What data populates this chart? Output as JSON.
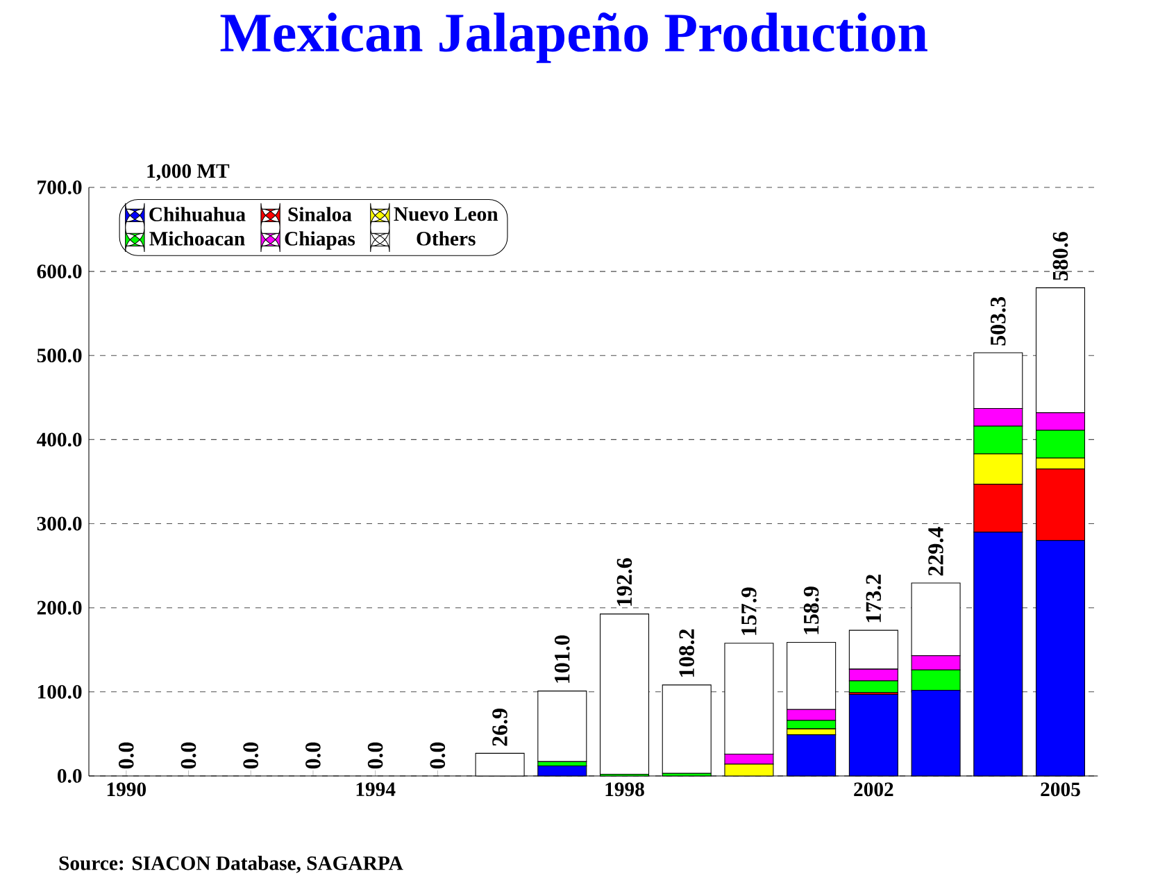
{
  "chart_data": {
    "type": "bar",
    "stacked": true,
    "title": "Mexican Jalapeño Production",
    "ylabel": "1,000 MT",
    "categories": [
      "1990",
      null,
      null,
      null,
      "1994",
      null,
      null,
      null,
      "1998",
      null,
      null,
      null,
      "2002",
      null,
      null,
      "2005"
    ],
    "series": [
      {
        "name": "Chihuahua",
        "color": "#0000ff",
        "values": [
          0,
          0,
          0,
          0,
          0,
          0,
          0,
          12,
          0,
          0,
          0,
          49,
          97,
          102,
          290,
          280
        ]
      },
      {
        "name": "Sinaloa",
        "color": "#ff0000",
        "values": [
          0,
          0,
          0,
          0,
          0,
          0,
          0,
          0,
          0,
          0,
          0,
          0,
          2,
          0,
          57,
          85
        ]
      },
      {
        "name": "Nuevo Leon",
        "color": "#ffff00",
        "values": [
          0,
          0,
          0,
          0,
          0,
          0,
          0,
          0,
          0,
          0,
          14,
          7,
          0,
          0,
          36,
          13
        ]
      },
      {
        "name": "Michoacan",
        "color": "#00ff00",
        "values": [
          0,
          0,
          0,
          0,
          0,
          0,
          0,
          5,
          2,
          3,
          0,
          10,
          14,
          24,
          33,
          33
        ]
      },
      {
        "name": "Chiapas",
        "color": "#ff00ff",
        "values": [
          0,
          0,
          0,
          0,
          0,
          0,
          0,
          0,
          0,
          0,
          12,
          13,
          14,
          17,
          21,
          21
        ]
      },
      {
        "name": "Others",
        "color": "#ffffff",
        "values": [
          0,
          0,
          0,
          0,
          0,
          0,
          26.9,
          84,
          190.6,
          105.2,
          131.9,
          79.9,
          46.2,
          86.4,
          66.3,
          148.6
        ]
      }
    ],
    "totals": [
      "0.0",
      "0.0",
      "0.0",
      "0.0",
      "0.0",
      "0.0",
      "26.9",
      "101.0",
      "192.6",
      "108.2",
      "157.9",
      "158.9",
      "173.2",
      "229.4",
      "503.3",
      "580.6"
    ],
    "ylim": [
      0,
      700
    ],
    "yticks": [
      {
        "value": 0,
        "label": "0.0"
      },
      {
        "value": 100,
        "label": "100.0"
      },
      {
        "value": 200,
        "label": "200.0"
      },
      {
        "value": 300,
        "label": "300.0"
      },
      {
        "value": 400,
        "label": "400.0"
      },
      {
        "value": 500,
        "label": "500.0"
      },
      {
        "value": 600,
        "label": "600.0"
      },
      {
        "value": 700,
        "label": "700.0"
      }
    ],
    "grid": "y",
    "legend": "top left",
    "annotations": [
      "Source:  SIACON Database, SAGARPA"
    ]
  }
}
